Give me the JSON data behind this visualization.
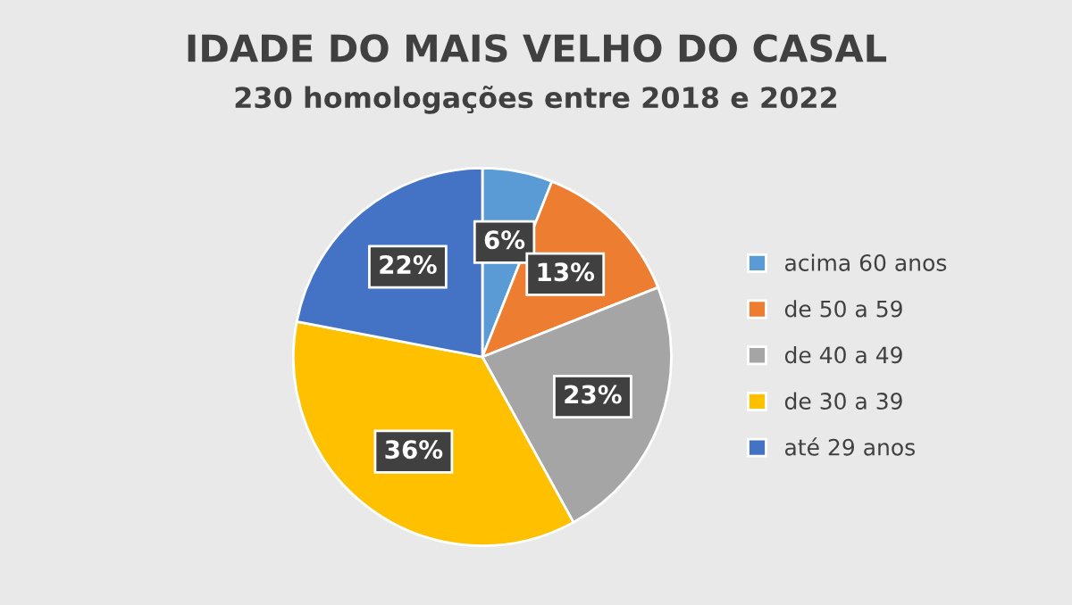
{
  "chart_data": {
    "type": "pie",
    "title": "IDADE DO MAIS VELHO DO CASAL",
    "subtitle": "230 homologações entre 2018 e 2022",
    "categories": [
      "acima 60 anos",
      "de 50 a 59",
      "de 40 a 49",
      "de 30 a 39",
      "até 29 anos"
    ],
    "values": [
      6,
      13,
      23,
      36,
      22
    ],
    "colors": [
      "#5b9bd5",
      "#ed7d31",
      "#a5a5a5",
      "#ffc000",
      "#4472c4"
    ],
    "value_labels": [
      "6%",
      "13%",
      "23%",
      "36%",
      "22%"
    ],
    "legend": "right"
  }
}
